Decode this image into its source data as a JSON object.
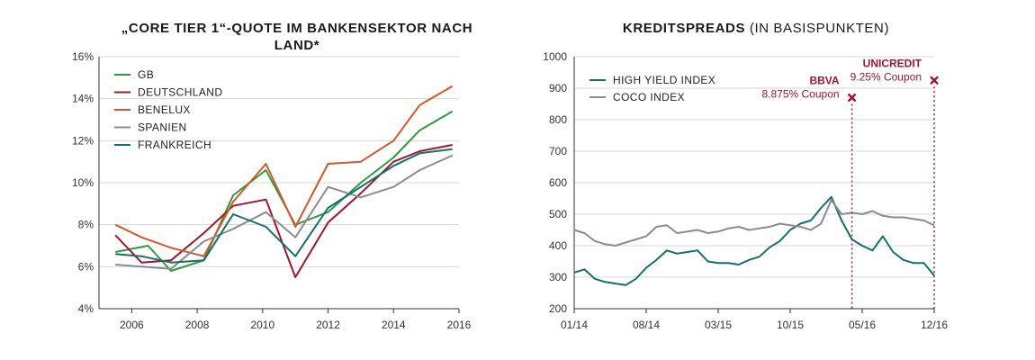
{
  "chart_data": [
    {
      "type": "line",
      "title": "„CORE TIER 1“-QUOTE IM BANKENSEKTOR NACH LAND*",
      "x_ticks": [
        "2006",
        "2008",
        "2010",
        "2012",
        "2014",
        "2016"
      ],
      "y_ticks": [
        "16%",
        "14%",
        "12%",
        "10%",
        "8%",
        "6%",
        "4%"
      ],
      "xlim": [
        2005,
        2016
      ],
      "ylim": [
        4,
        16
      ],
      "grid": "horizontal",
      "legend_position": "top-left",
      "series": [
        {
          "name": "GB",
          "color": "#2e9a3e",
          "x": [
            2005.5,
            2006.5,
            2007.2,
            2008.2,
            2009.1,
            2010.1,
            2011.0,
            2012.0,
            2013.0,
            2014.0,
            2014.8,
            2015.8
          ],
          "y": [
            6.7,
            7.0,
            5.8,
            6.3,
            9.4,
            10.6,
            8.0,
            8.6,
            10.0,
            11.2,
            12.5,
            13.4
          ]
        },
        {
          "name": "DEUTSCHLAND",
          "color": "#a3142f",
          "x": [
            2005.5,
            2006.3,
            2007.2,
            2008.2,
            2009.1,
            2010.1,
            2011.0,
            2012.0,
            2013.0,
            2014.0,
            2014.8,
            2015.8
          ],
          "y": [
            7.5,
            6.2,
            6.3,
            7.6,
            8.9,
            9.2,
            5.5,
            8.1,
            9.5,
            11.0,
            11.5,
            11.8
          ]
        },
        {
          "name": "BENELUX",
          "color": "#d4582a",
          "x": [
            2005.5,
            2006.3,
            2007.2,
            2008.2,
            2009.1,
            2010.1,
            2011.0,
            2012.0,
            2013.0,
            2014.0,
            2014.8,
            2015.8
          ],
          "y": [
            8.0,
            7.4,
            6.9,
            6.5,
            9.1,
            10.9,
            7.9,
            10.9,
            11.0,
            12.0,
            13.7,
            14.6
          ]
        },
        {
          "name": "SPANIEN",
          "color": "#8c8c8c",
          "x": [
            2005.5,
            2006.3,
            2007.2,
            2008.2,
            2009.1,
            2010.1,
            2011.0,
            2012.0,
            2013.0,
            2014.0,
            2014.8,
            2015.8
          ],
          "y": [
            6.1,
            6.0,
            5.9,
            7.2,
            7.8,
            8.6,
            7.4,
            9.8,
            9.3,
            9.8,
            10.6,
            11.3
          ]
        },
        {
          "name": "FRANKREICH",
          "color": "#13706b",
          "x": [
            2005.5,
            2006.3,
            2007.2,
            2008.2,
            2009.1,
            2010.1,
            2011.0,
            2012.0,
            2013.0,
            2014.0,
            2014.8,
            2015.8
          ],
          "y": [
            6.6,
            6.5,
            6.2,
            6.3,
            8.5,
            7.9,
            6.5,
            8.8,
            9.8,
            10.8,
            11.4,
            11.6
          ]
        }
      ]
    },
    {
      "type": "line",
      "title": "KREDITSPREADS",
      "title_suffix": "(IN BASISPUNKTEN)",
      "x_ticks": [
        "01/14",
        "08/14",
        "03/15",
        "10/15",
        "05/16",
        "12/16"
      ],
      "y_ticks": [
        "1000",
        "900",
        "800",
        "700",
        "600",
        "500",
        "400",
        "300",
        "200"
      ],
      "ylim": [
        200,
        1000
      ],
      "grid": "horizontal",
      "legend_position": "top-left",
      "series": [
        {
          "name": "HIGH YIELD INDEX",
          "color": "#13706b",
          "x": [
            "01/14",
            "02/14",
            "03/14",
            "04/14",
            "05/14",
            "06/14",
            "07/14",
            "08/14",
            "09/14",
            "10/14",
            "11/14",
            "12/14",
            "01/15",
            "02/15",
            "03/15",
            "04/15",
            "05/15",
            "06/15",
            "07/15",
            "08/15",
            "09/15",
            "10/15",
            "11/15",
            "12/15",
            "01/16",
            "02/16",
            "03/16",
            "04/16",
            "05/16",
            "06/16",
            "07/16",
            "08/16",
            "09/16",
            "10/16",
            "11/16",
            "12/16"
          ],
          "y": [
            315,
            325,
            295,
            285,
            280,
            275,
            295,
            330,
            355,
            385,
            375,
            380,
            385,
            350,
            345,
            345,
            340,
            355,
            365,
            395,
            415,
            450,
            470,
            480,
            520,
            555,
            480,
            420,
            400,
            385,
            430,
            380,
            355,
            345,
            345,
            305
          ]
        },
        {
          "name": "COCO INDEX",
          "color": "#8c8c8c",
          "x": [
            "01/14",
            "02/14",
            "03/14",
            "04/14",
            "05/14",
            "06/14",
            "07/14",
            "08/14",
            "09/14",
            "10/14",
            "11/14",
            "12/14",
            "01/15",
            "02/15",
            "03/15",
            "04/15",
            "05/15",
            "06/15",
            "07/15",
            "08/15",
            "09/15",
            "10/15",
            "11/15",
            "12/15",
            "01/16",
            "02/16",
            "03/16",
            "04/16",
            "05/16",
            "06/16",
            "07/16",
            "08/16",
            "09/16",
            "10/16",
            "11/16",
            "12/16"
          ],
          "y": [
            450,
            440,
            415,
            405,
            400,
            410,
            420,
            430,
            460,
            465,
            440,
            445,
            450,
            440,
            445,
            455,
            460,
            450,
            455,
            460,
            470,
            465,
            460,
            450,
            470,
            545,
            500,
            505,
            500,
            510,
            495,
            490,
            490,
            485,
            480,
            465
          ]
        }
      ],
      "annotations": [
        {
          "label": "BBVA",
          "sublabel": "8.875% Coupon",
          "x": "04/16",
          "y": 870,
          "color": "#a3142f"
        },
        {
          "label": "UNICREDIT",
          "sublabel": "9.25% Coupon",
          "x": "12/16",
          "y": 925,
          "color": "#a3142f"
        }
      ]
    }
  ]
}
